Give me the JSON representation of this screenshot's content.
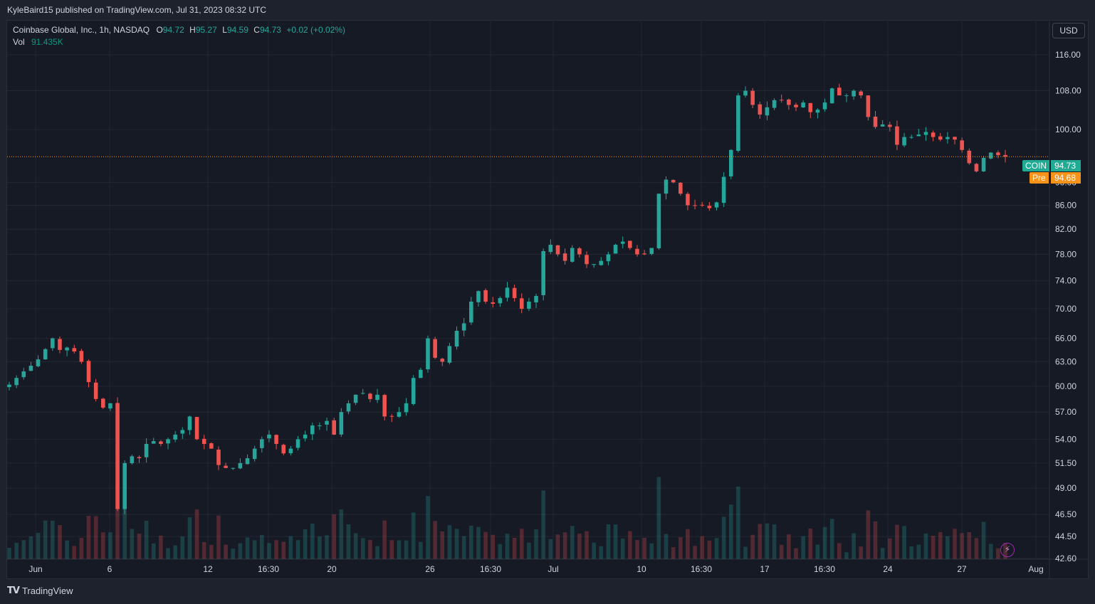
{
  "header": {
    "published": "KyleBaird15 published on TradingView.com, Jul 31, 2023 08:32 UTC"
  },
  "legend": {
    "symbol_line": "Coinbase Global, Inc., 1h, NASDAQ",
    "o_label": "O",
    "o_value": "94.72",
    "h_label": "H",
    "h_value": "95.27",
    "l_label": "L",
    "l_value": "94.59",
    "c_label": "C",
    "c_value": "94.73",
    "change": "+0.02 (+0.02%)",
    "vol_label": "Vol",
    "vol_value": "91.435K"
  },
  "currency": "USD",
  "last_price": {
    "symbol": "COIN",
    "value": "94.73",
    "color": "#22ab94"
  },
  "pre_price": {
    "label": "Pre",
    "value": "94.68",
    "color": "#f7931a"
  },
  "footer": {
    "brand": "TradingView",
    "logo": "tradingview-logo-icon"
  },
  "colors": {
    "up": "#26a69a",
    "down": "#ef5350",
    "grid": "#232733",
    "pricelevel": "#f7931a"
  },
  "chart_data": {
    "type": "candlestick",
    "title": "",
    "symbol": "COIN",
    "interval": "1h",
    "ylabel": "",
    "ylim": [
      42.6,
      119
    ],
    "y_scale": "log",
    "y_ticks": [
      "116.00",
      "108.00",
      "100.00",
      "90.00",
      "86.00",
      "82.00",
      "78.00",
      "74.00",
      "70.00",
      "66.00",
      "63.00",
      "60.00",
      "57.00",
      "54.00",
      "51.50",
      "49.00",
      "46.50",
      "44.50",
      "42.60"
    ],
    "x_ticks": [
      "Jun",
      "6",
      "12",
      "16:30",
      "20",
      "26",
      "16:30",
      "Jul",
      "10",
      "16:30",
      "17",
      "16:30",
      "24",
      "27",
      "Aug"
    ],
    "grid": true,
    "last_close": 94.73,
    "close_series": [
      60.2,
      61.0,
      61.8,
      62.5,
      63.3,
      64.6,
      66.0,
      64.5,
      64.8,
      64.3,
      63.0,
      60.5,
      58.5,
      57.5,
      58.0,
      47.0,
      51.5,
      52.2,
      52.0,
      53.5,
      53.8,
      53.5,
      54.0,
      54.5,
      55.0,
      56.5,
      54.0,
      53.5,
      53.0,
      51.3,
      51.0,
      51.0,
      51.5,
      52.0,
      53.0,
      54.0,
      54.5,
      53.5,
      52.5,
      53.0,
      54.0,
      54.5,
      55.5,
      55.5,
      56.0,
      54.5,
      57.0,
      58.0,
      59.0,
      59.2,
      58.5,
      59.0,
      56.5,
      56.5,
      57.0,
      58.0,
      61.0,
      62.0,
      66.0,
      63.5,
      63.0,
      65.0,
      67.0,
      68.0,
      71.0,
      72.5,
      71.0,
      70.7,
      71.5,
      73.0,
      71.5,
      70.0,
      71.0,
      71.8,
      78.5,
      79.5,
      78.0,
      77.0,
      79.0,
      78.0,
      76.5,
      76.5,
      77.0,
      78.0,
      79.5,
      80.0,
      79.0,
      78.0,
      78.0,
      79.0,
      88.0,
      90.5,
      90.0,
      88.0,
      86.0,
      86.0,
      86.0,
      85.5,
      86.5,
      91.0,
      96.0,
      107.0,
      108.0,
      105.0,
      103.0,
      104.5,
      106.0,
      106.0,
      105.0,
      104.5,
      105.5,
      103.5,
      104.0,
      105.5,
      108.5,
      107.0,
      107.0,
      108.0,
      107.0,
      102.5,
      100.5,
      101.0,
      100.5,
      97.0,
      98.5,
      98.5,
      99.0,
      99.5,
      98.5,
      98.0,
      98.5,
      98.0,
      96.0,
      93.5,
      92.0,
      94.5,
      95.5,
      95.0,
      94.73
    ]
  }
}
